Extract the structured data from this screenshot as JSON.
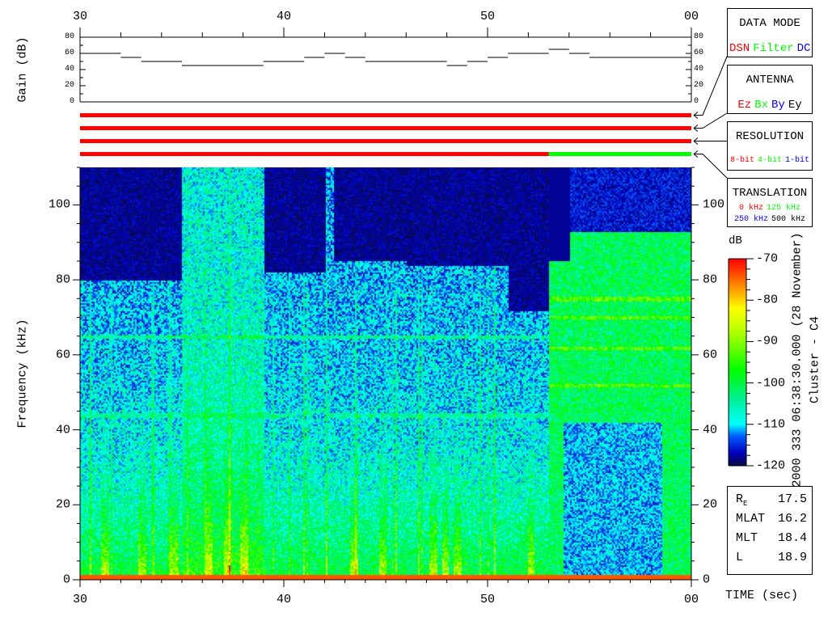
{
  "chart_data": [
    {
      "type": "line",
      "ylabel": "Gain (dB)",
      "ylim": [
        0,
        80
      ],
      "yticks": [
        "80",
        "60",
        "40",
        "20",
        "0"
      ],
      "x_tick_labels": [
        "30",
        "40",
        "50",
        "00"
      ],
      "xlim": [
        30,
        60
      ],
      "step_series": {
        "x_start": [
          30,
          32,
          33,
          35,
          39,
          41,
          42,
          43,
          44,
          48,
          49,
          50,
          51,
          53,
          54,
          55
        ],
        "x_end": [
          32,
          33,
          35,
          39,
          41,
          42,
          43,
          44,
          48,
          49,
          50,
          51,
          53,
          54,
          55,
          60
        ],
        "gain": [
          60,
          55,
          50,
          45,
          50,
          55,
          60,
          55,
          50,
          45,
          50,
          55,
          60,
          65,
          60,
          55
        ]
      }
    },
    {
      "type": "table",
      "mode_bars": [
        {
          "name": "data-mode",
          "segments": [
            {
              "from": 30,
              "to": 60,
              "color": "#ff0000"
            }
          ]
        },
        {
          "name": "antenna",
          "segments": [
            {
              "from": 30,
              "to": 60,
              "color": "#ff0000"
            }
          ]
        },
        {
          "name": "translation",
          "segments": [
            {
              "from": 30,
              "to": 60,
              "color": "#ff0000"
            }
          ]
        },
        {
          "name": "resolution",
          "segments": [
            {
              "from": 30,
              "to": 53,
              "color": "#ff0000"
            },
            {
              "from": 53,
              "to": 60,
              "color": "#00ff00"
            }
          ]
        }
      ]
    },
    {
      "type": "heatmap",
      "xlabel": "TIME (sec)",
      "ylabel": "Frequency (kHz)",
      "xlim": [
        30,
        60
      ],
      "ylim": [
        0,
        110
      ],
      "x_tick_labels": [
        "30",
        "40",
        "50",
        "00"
      ],
      "yticks": [
        "100",
        "80",
        "60",
        "40",
        "20",
        "0"
      ],
      "colorbar": {
        "unit": "dB",
        "min": -120,
        "max": -70,
        "ticks": [
          "-70",
          "-80",
          "-90",
          "-100",
          "-110",
          "-120"
        ]
      }
    }
  ],
  "legend": {
    "data_mode": {
      "title": "DATA MODE",
      "items": [
        {
          "label": "DSN",
          "color": "#ff0000"
        },
        {
          "label": "Filter",
          "color": "#00ff00"
        },
        {
          "label": "DC",
          "color": "#0000ff"
        }
      ]
    },
    "antenna": {
      "title": "ANTENNA",
      "items": [
        {
          "label": "Ez",
          "color": "#ff0000"
        },
        {
          "label": "Bx",
          "color": "#00ff00"
        },
        {
          "label": "By",
          "color": "#0000ff"
        },
        {
          "label": "Ey",
          "color": "#000000"
        }
      ]
    },
    "resolution": {
      "title": "RESOLUTION",
      "items": [
        {
          "label": "8-bit",
          "color": "#ff0000"
        },
        {
          "label": "4-bit",
          "color": "#00ff00"
        },
        {
          "label": "1-bit",
          "color": "#0000ff"
        }
      ]
    },
    "translation": {
      "title": "TRANSLATION",
      "items": [
        {
          "label": "0 kHz",
          "color": "#ff0000"
        },
        {
          "label": "125 kHz",
          "color": "#00ff00"
        },
        {
          "label": "250 kHz",
          "color": "#0000ff"
        },
        {
          "label": "500 kHz",
          "color": "#000000"
        }
      ]
    }
  },
  "header": {
    "timestamp": "2000 333 06:38:30.000 (28 November)",
    "spacecraft": "Cluster - C4"
  },
  "orbit": [
    {
      "label": "R",
      "sub": "E",
      "value": "17.5"
    },
    {
      "label": "MLAT",
      "sub": "",
      "value": "16.2"
    },
    {
      "label": "MLT",
      "sub": "",
      "value": "18.4"
    },
    {
      "label": "L",
      "sub": "",
      "value": "18.9"
    }
  ]
}
